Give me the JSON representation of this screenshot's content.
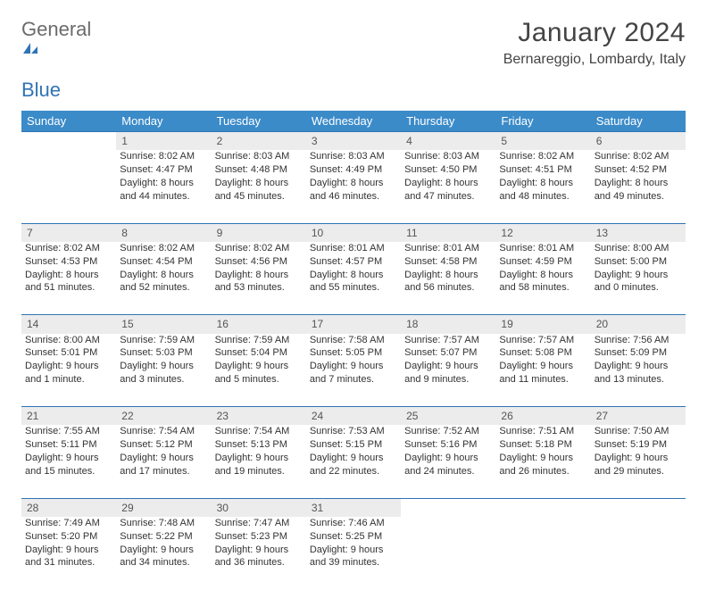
{
  "brand": {
    "part1": "General",
    "part2": "Blue"
  },
  "title": "January 2024",
  "location": "Bernareggio, Lombardy, Italy",
  "colors": {
    "header_bg": "#3b8bc9",
    "rule": "#2f74b5",
    "daynum_bg": "#ececec"
  },
  "weekdays": [
    "Sunday",
    "Monday",
    "Tuesday",
    "Wednesday",
    "Thursday",
    "Friday",
    "Saturday"
  ],
  "weeks": [
    {
      "nums": [
        "",
        "1",
        "2",
        "3",
        "4",
        "5",
        "6"
      ],
      "cells": [
        null,
        {
          "sunrise": "Sunrise: 8:02 AM",
          "sunset": "Sunset: 4:47 PM",
          "day1": "Daylight: 8 hours",
          "day2": "and 44 minutes."
        },
        {
          "sunrise": "Sunrise: 8:03 AM",
          "sunset": "Sunset: 4:48 PM",
          "day1": "Daylight: 8 hours",
          "day2": "and 45 minutes."
        },
        {
          "sunrise": "Sunrise: 8:03 AM",
          "sunset": "Sunset: 4:49 PM",
          "day1": "Daylight: 8 hours",
          "day2": "and 46 minutes."
        },
        {
          "sunrise": "Sunrise: 8:03 AM",
          "sunset": "Sunset: 4:50 PM",
          "day1": "Daylight: 8 hours",
          "day2": "and 47 minutes."
        },
        {
          "sunrise": "Sunrise: 8:02 AM",
          "sunset": "Sunset: 4:51 PM",
          "day1": "Daylight: 8 hours",
          "day2": "and 48 minutes."
        },
        {
          "sunrise": "Sunrise: 8:02 AM",
          "sunset": "Sunset: 4:52 PM",
          "day1": "Daylight: 8 hours",
          "day2": "and 49 minutes."
        }
      ]
    },
    {
      "nums": [
        "7",
        "8",
        "9",
        "10",
        "11",
        "12",
        "13"
      ],
      "cells": [
        {
          "sunrise": "Sunrise: 8:02 AM",
          "sunset": "Sunset: 4:53 PM",
          "day1": "Daylight: 8 hours",
          "day2": "and 51 minutes."
        },
        {
          "sunrise": "Sunrise: 8:02 AM",
          "sunset": "Sunset: 4:54 PM",
          "day1": "Daylight: 8 hours",
          "day2": "and 52 minutes."
        },
        {
          "sunrise": "Sunrise: 8:02 AM",
          "sunset": "Sunset: 4:56 PM",
          "day1": "Daylight: 8 hours",
          "day2": "and 53 minutes."
        },
        {
          "sunrise": "Sunrise: 8:01 AM",
          "sunset": "Sunset: 4:57 PM",
          "day1": "Daylight: 8 hours",
          "day2": "and 55 minutes."
        },
        {
          "sunrise": "Sunrise: 8:01 AM",
          "sunset": "Sunset: 4:58 PM",
          "day1": "Daylight: 8 hours",
          "day2": "and 56 minutes."
        },
        {
          "sunrise": "Sunrise: 8:01 AM",
          "sunset": "Sunset: 4:59 PM",
          "day1": "Daylight: 8 hours",
          "day2": "and 58 minutes."
        },
        {
          "sunrise": "Sunrise: 8:00 AM",
          "sunset": "Sunset: 5:00 PM",
          "day1": "Daylight: 9 hours",
          "day2": "and 0 minutes."
        }
      ]
    },
    {
      "nums": [
        "14",
        "15",
        "16",
        "17",
        "18",
        "19",
        "20"
      ],
      "cells": [
        {
          "sunrise": "Sunrise: 8:00 AM",
          "sunset": "Sunset: 5:01 PM",
          "day1": "Daylight: 9 hours",
          "day2": "and 1 minute."
        },
        {
          "sunrise": "Sunrise: 7:59 AM",
          "sunset": "Sunset: 5:03 PM",
          "day1": "Daylight: 9 hours",
          "day2": "and 3 minutes."
        },
        {
          "sunrise": "Sunrise: 7:59 AM",
          "sunset": "Sunset: 5:04 PM",
          "day1": "Daylight: 9 hours",
          "day2": "and 5 minutes."
        },
        {
          "sunrise": "Sunrise: 7:58 AM",
          "sunset": "Sunset: 5:05 PM",
          "day1": "Daylight: 9 hours",
          "day2": "and 7 minutes."
        },
        {
          "sunrise": "Sunrise: 7:57 AM",
          "sunset": "Sunset: 5:07 PM",
          "day1": "Daylight: 9 hours",
          "day2": "and 9 minutes."
        },
        {
          "sunrise": "Sunrise: 7:57 AM",
          "sunset": "Sunset: 5:08 PM",
          "day1": "Daylight: 9 hours",
          "day2": "and 11 minutes."
        },
        {
          "sunrise": "Sunrise: 7:56 AM",
          "sunset": "Sunset: 5:09 PM",
          "day1": "Daylight: 9 hours",
          "day2": "and 13 minutes."
        }
      ]
    },
    {
      "nums": [
        "21",
        "22",
        "23",
        "24",
        "25",
        "26",
        "27"
      ],
      "cells": [
        {
          "sunrise": "Sunrise: 7:55 AM",
          "sunset": "Sunset: 5:11 PM",
          "day1": "Daylight: 9 hours",
          "day2": "and 15 minutes."
        },
        {
          "sunrise": "Sunrise: 7:54 AM",
          "sunset": "Sunset: 5:12 PM",
          "day1": "Daylight: 9 hours",
          "day2": "and 17 minutes."
        },
        {
          "sunrise": "Sunrise: 7:54 AM",
          "sunset": "Sunset: 5:13 PM",
          "day1": "Daylight: 9 hours",
          "day2": "and 19 minutes."
        },
        {
          "sunrise": "Sunrise: 7:53 AM",
          "sunset": "Sunset: 5:15 PM",
          "day1": "Daylight: 9 hours",
          "day2": "and 22 minutes."
        },
        {
          "sunrise": "Sunrise: 7:52 AM",
          "sunset": "Sunset: 5:16 PM",
          "day1": "Daylight: 9 hours",
          "day2": "and 24 minutes."
        },
        {
          "sunrise": "Sunrise: 7:51 AM",
          "sunset": "Sunset: 5:18 PM",
          "day1": "Daylight: 9 hours",
          "day2": "and 26 minutes."
        },
        {
          "sunrise": "Sunrise: 7:50 AM",
          "sunset": "Sunset: 5:19 PM",
          "day1": "Daylight: 9 hours",
          "day2": "and 29 minutes."
        }
      ]
    },
    {
      "nums": [
        "28",
        "29",
        "30",
        "31",
        "",
        "",
        ""
      ],
      "cells": [
        {
          "sunrise": "Sunrise: 7:49 AM",
          "sunset": "Sunset: 5:20 PM",
          "day1": "Daylight: 9 hours",
          "day2": "and 31 minutes."
        },
        {
          "sunrise": "Sunrise: 7:48 AM",
          "sunset": "Sunset: 5:22 PM",
          "day1": "Daylight: 9 hours",
          "day2": "and 34 minutes."
        },
        {
          "sunrise": "Sunrise: 7:47 AM",
          "sunset": "Sunset: 5:23 PM",
          "day1": "Daylight: 9 hours",
          "day2": "and 36 minutes."
        },
        {
          "sunrise": "Sunrise: 7:46 AM",
          "sunset": "Sunset: 5:25 PM",
          "day1": "Daylight: 9 hours",
          "day2": "and 39 minutes."
        },
        null,
        null,
        null
      ]
    }
  ]
}
